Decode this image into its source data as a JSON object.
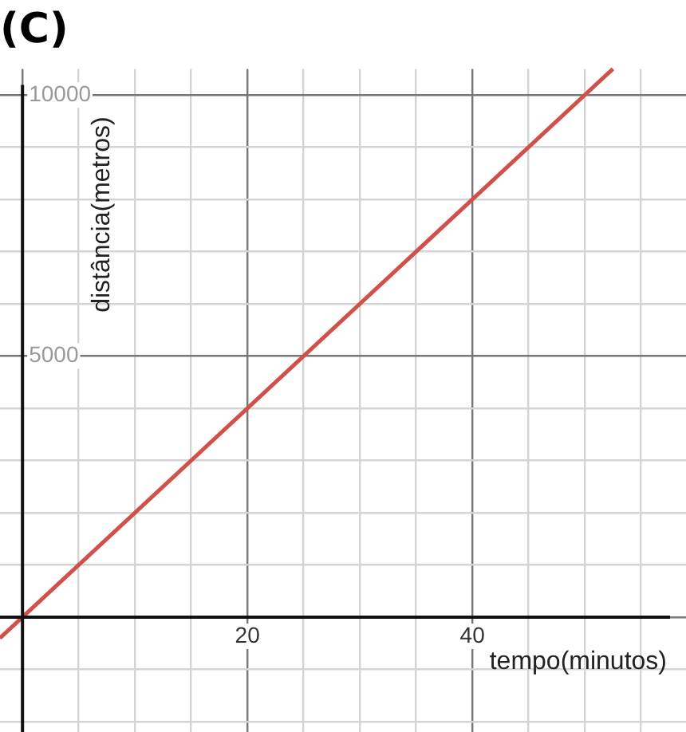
{
  "chart_data": {
    "type": "line",
    "title": "(C)",
    "xlabel": "tempo(minutos)",
    "ylabel": "distância(metros)",
    "x": [
      -2,
      52.5
    ],
    "series": [
      {
        "color": "#d0504a",
        "values": [
          -400,
          10500
        ]
      }
    ],
    "xlim": [
      -2,
      59
    ],
    "ylim": [
      -2200,
      10500
    ],
    "xticks": [
      {
        "value": 0,
        "label": null
      },
      {
        "value": 5,
        "label": null
      },
      {
        "value": 10,
        "label": null
      },
      {
        "value": 15,
        "label": null
      },
      20,
      {
        "value": 25,
        "label": null
      },
      {
        "value": 30,
        "label": null
      },
      {
        "value": 35,
        "label": null
      },
      40,
      {
        "value": 45,
        "label": null
      },
      {
        "value": 50,
        "label": null
      },
      {
        "value": 55,
        "label": null
      }
    ],
    "yticks": [
      {
        "value": -2000,
        "label": null
      },
      {
        "value": -1000,
        "label": null
      },
      {
        "value": 0,
        "label": null
      },
      {
        "value": 1000,
        "label": null
      },
      {
        "value": 2000,
        "label": null
      },
      {
        "value": 3000,
        "label": null
      },
      {
        "value": 4000,
        "label": null
      },
      5000,
      {
        "value": 6000,
        "label": null
      },
      {
        "value": 7000,
        "label": null
      },
      {
        "value": 8000,
        "label": null
      },
      {
        "value": 9000,
        "label": null
      },
      10000
    ],
    "grid": true,
    "marker": "none",
    "line_style": "solid"
  }
}
